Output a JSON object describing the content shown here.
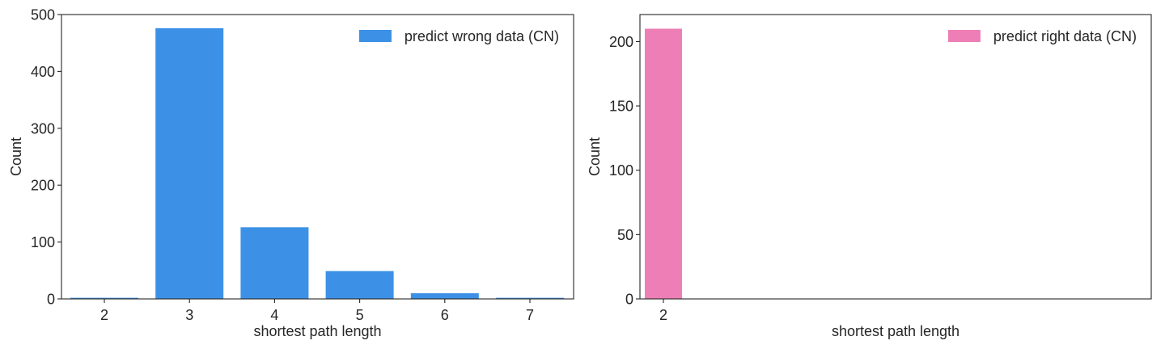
{
  "chart_data": [
    {
      "type": "bar",
      "categories": [
        "2",
        "3",
        "4",
        "5",
        "6",
        "7"
      ],
      "series": [
        {
          "name": "predict wrong data (CN)",
          "values": [
            2,
            476,
            126,
            49,
            10,
            2
          ],
          "color": "#3c91e6"
        }
      ],
      "xlabel": "shortest path length",
      "ylabel": "Count",
      "ylim": [
        0,
        500
      ],
      "yticks": [
        0,
        100,
        200,
        300,
        400,
        500
      ],
      "grid": false,
      "legend": "top-right"
    },
    {
      "type": "bar",
      "categories": [
        "2"
      ],
      "series": [
        {
          "name": "predict right data (CN)",
          "values": [
            210
          ],
          "color": "#ee7fb6"
        }
      ],
      "xlabel": "shortest path length",
      "ylabel": "Count",
      "ylim": [
        0,
        221
      ],
      "yticks": [
        0,
        50,
        100,
        150,
        200
      ],
      "grid": false,
      "legend": "top-right"
    }
  ]
}
